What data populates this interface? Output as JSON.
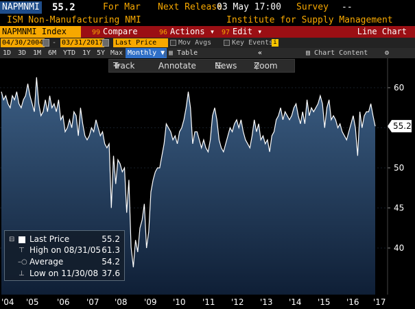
{
  "header": {
    "ticker": "NAPMNMI",
    "last": "55.2",
    "for": "For Mar",
    "release_label": "Next Release",
    "release_value": "03 May 17:00",
    "survey_label": "Survey",
    "survey_value": "--",
    "name": "ISM Non-Manufacturing NMI",
    "source": "Institute for Supply Management"
  },
  "toolbar": {
    "security": "NAPMNMI Index",
    "compare_num": "99",
    "compare": "Compare",
    "actions_num": "96",
    "actions": "Actions ▾",
    "edit_num": "97",
    "edit": "Edit ▾",
    "chart_type": "Line Chart"
  },
  "range": {
    "start": "04/30/2004",
    "end": "03/31/2017",
    "price_field": "Last Price",
    "mov_avgs": "Mov Avgs",
    "key_events": "Key Events"
  },
  "periods": [
    "1D",
    "3D",
    "1M",
    "6M",
    "YTD",
    "1Y",
    "5Y",
    "Max"
  ],
  "frequency": "Monthly ▼",
  "table": "Table",
  "collapse": "«",
  "chart_content": "Chart Content",
  "gear": "⚙",
  "tools": {
    "track": "Track",
    "annotate": "Annotate",
    "news": "News",
    "zoom": "Zoom"
  },
  "legend": {
    "last_price_label": "Last Price",
    "last_price_value": "55.2",
    "high_label": "High on 08/31/05",
    "high_value": "61.3",
    "average_label": "Average",
    "average_value": "54.2",
    "low_label": "Low on 11/30/08",
    "low_value": "37.6"
  },
  "x_labels": [
    "'04",
    "'05",
    "'06",
    "'07",
    "'08",
    "'09",
    "'10",
    "'11",
    "'12",
    "'13",
    "'14",
    "'15",
    "'16",
    "'17"
  ],
  "colors": {
    "accent": "#f7a800",
    "bar_red": "#9b0f14",
    "area_top": "#3c5f85",
    "area_bottom": "#0f1f36"
  },
  "chart_data": {
    "type": "area",
    "title": "",
    "xlabel": "",
    "ylabel": "",
    "ylim": [
      34,
      63
    ],
    "y_ticks": [
      40,
      45,
      50,
      55,
      60
    ],
    "last_value": 55.2,
    "x_start": "2004-04",
    "frequency": "monthly",
    "values": [
      59.5,
      58.5,
      59.0,
      58.0,
      57.5,
      59.0,
      58.5,
      59.5,
      58.0,
      57.5,
      58.5,
      59.0,
      60.5,
      59.0,
      58.0,
      57.0,
      61.3,
      58.0,
      56.5,
      57.0,
      58.5,
      57.0,
      59.0,
      57.5,
      58.0,
      57.0,
      58.5,
      56.0,
      56.5,
      54.5,
      55.0,
      56.0,
      55.0,
      57.0,
      56.5,
      54.0,
      57.5,
      55.5,
      54.0,
      53.5,
      54.0,
      55.0,
      54.5,
      56.0,
      55.0,
      54.0,
      54.5,
      53.0,
      52.5,
      53.0,
      45.0,
      51.5,
      48.0,
      51.0,
      50.5,
      49.5,
      50.0,
      44.4,
      48.5,
      40.1,
      37.6,
      41.0,
      39.5,
      42.5,
      43.5,
      45.5,
      40.0,
      42.0,
      47.0,
      48.5,
      49.5,
      50.0,
      50.0,
      51.5,
      53.0,
      55.5,
      55.0,
      54.5,
      53.5,
      54.0,
      53.0,
      54.5,
      55.0,
      56.0,
      57.5,
      59.5,
      57.5,
      53.0,
      54.5,
      54.5,
      53.5,
      52.5,
      53.5,
      52.5,
      52.0,
      53.5,
      56.5,
      57.5,
      56.0,
      53.5,
      52.5,
      52.0,
      53.0,
      54.0,
      55.0,
      54.5,
      55.5,
      56.0,
      55.0,
      56.0,
      54.5,
      53.5,
      53.0,
      52.5,
      54.0,
      56.0,
      54.5,
      55.5,
      53.5,
      54.0,
      53.0,
      53.5,
      52.0,
      54.0,
      54.5,
      56.0,
      56.5,
      57.5,
      56.0,
      57.0,
      56.5,
      56.0,
      56.5,
      57.5,
      58.0,
      56.5,
      55.5,
      57.0,
      55.5,
      58.5,
      56.5,
      57.5,
      57.0,
      57.5,
      58.0,
      59.0,
      58.0,
      55.0,
      57.5,
      58.5,
      56.0,
      56.5,
      56.0,
      55.0,
      55.5,
      54.5,
      54.0,
      53.5,
      54.5,
      55.5,
      56.5,
      55.0,
      51.5,
      57.0,
      55.0,
      56.5,
      57.0,
      57.0,
      58.0,
      56.5,
      55.2
    ]
  }
}
